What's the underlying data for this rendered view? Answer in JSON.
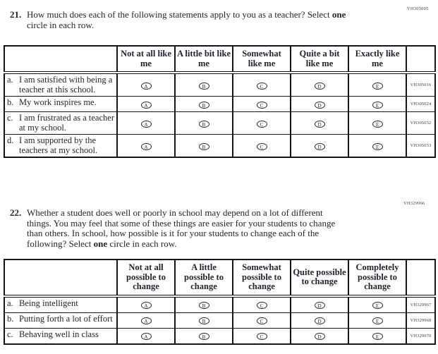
{
  "colors": {
    "ink": "#232430",
    "border": "#141418",
    "code_text": "#3c3d4c",
    "background": "#ffffff"
  },
  "q21": {
    "number": "21.",
    "code": "VH305005",
    "text_lines": [
      [
        [
          "How much does each of the following statements apply to you as a teacher? Select ",
          false
        ],
        [
          "one",
          true
        ]
      ],
      [
        [
          "circle in each row.",
          false
        ]
      ]
    ],
    "table": {
      "option_letters": [
        "A",
        "B",
        "C",
        "D",
        "E"
      ],
      "columns": [
        "Not at all like me",
        "A little bit like me",
        "Somewhat like me",
        "Quite a bit like me",
        "Exactly like me"
      ],
      "rows": [
        {
          "letter": "a.",
          "statement": "I am satisfied with being a teacher at this school.",
          "code": "VH305016"
        },
        {
          "letter": "b.",
          "statement": "My work inspires me.",
          "code": "VH305024"
        },
        {
          "letter": "c.",
          "statement": "I am frustrated as a teacher at my school.",
          "code": "VH305032"
        },
        {
          "letter": "d.",
          "statement": "I am supported by the teachers at my school.",
          "code": "VH305033"
        }
      ]
    }
  },
  "q22": {
    "number": "22.",
    "code": "VH329966",
    "text_lines": [
      [
        [
          "Whether a student does well or poorly in school may depend on a lot of different",
          false
        ]
      ],
      [
        [
          "things. You may feel that some of these things are easier for your students to change",
          false
        ]
      ],
      [
        [
          "than others. In school, how possible is it for your students to change each of the",
          false
        ]
      ],
      [
        [
          "following? Select ",
          false
        ],
        [
          "one",
          true
        ],
        [
          " circle in each row.",
          false
        ]
      ]
    ],
    "table": {
      "option_letters": [
        "A",
        "B",
        "C",
        "D",
        "E"
      ],
      "columns": [
        "Not at all possible to change",
        "A little possible to change",
        "Somewhat possible to change",
        "Quite possible to change",
        "Completely possible to change"
      ],
      "rows": [
        {
          "letter": "a.",
          "statement": "Being intelligent",
          "code": "VH329967"
        },
        {
          "letter": "b.",
          "statement": "Putting forth a lot of effort",
          "code": "VH329968"
        },
        {
          "letter": "c.",
          "statement": "Behaving well in class",
          "code": "VH329970"
        }
      ]
    }
  }
}
